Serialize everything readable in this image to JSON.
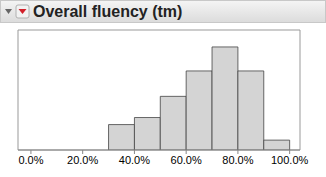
{
  "chart_data": {
    "type": "histogram",
    "title": "Overall fluency (tm)",
    "bins": [
      30,
      40,
      50,
      60,
      70,
      80,
      90,
      100
    ],
    "values": [
      18,
      23,
      38,
      56,
      73,
      56,
      7
    ],
    "color": "#d4d4d4",
    "xlim": [
      -5,
      104
    ],
    "xticks": [
      {
        "value": 0,
        "label": "0.0%"
      },
      {
        "value": 20,
        "label": "20.0%"
      },
      {
        "value": 40,
        "label": "40.0%"
      },
      {
        "value": 60,
        "label": "60.0%"
      },
      {
        "value": 80,
        "label": "80.0%"
      },
      {
        "value": 100,
        "label": "100.0%"
      }
    ],
    "ylim": [
      0,
      85
    ],
    "tick_labels": "x"
  }
}
